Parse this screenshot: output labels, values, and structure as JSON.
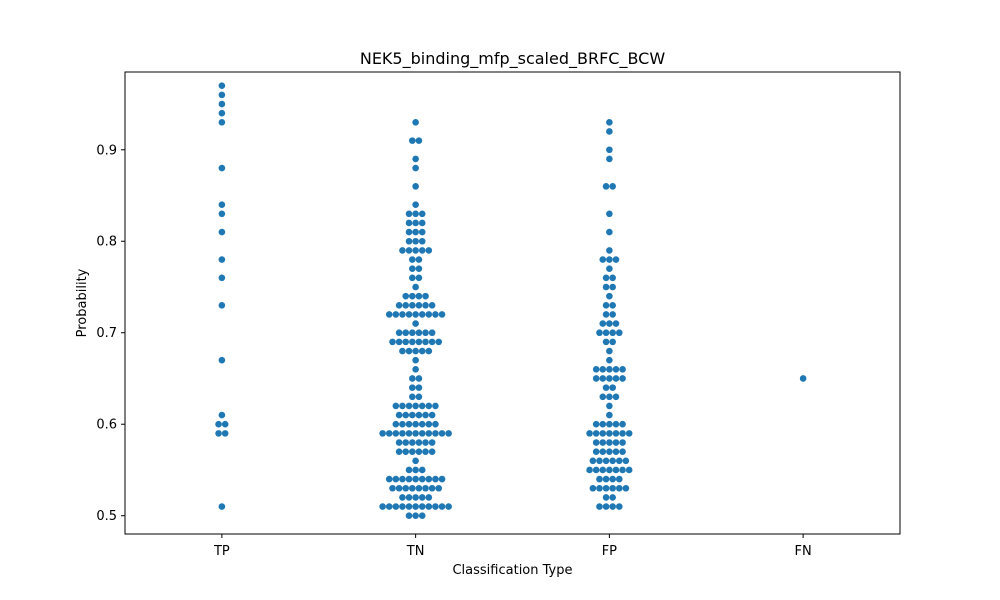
{
  "chart_data": {
    "type": "scatter",
    "subtype": "swarm",
    "title": "NEK5_binding_mfp_scaled_BRFC_BCW",
    "xlabel": "Classification Type",
    "ylabel": "Probability",
    "categories": [
      "TP",
      "TN",
      "FP",
      "FN"
    ],
    "yticks": [
      0.5,
      0.6,
      0.7,
      0.8,
      0.9
    ],
    "ytick_labels": [
      "0.5",
      "0.6",
      "0.7",
      "0.8",
      "0.9"
    ],
    "ylim": [
      0.48,
      0.985
    ],
    "grid": false,
    "legend": "none",
    "color": "#1f77b4",
    "series": [
      {
        "category": "TP",
        "values": [
          0.97,
          0.96,
          0.95,
          0.94,
          0.93,
          0.88,
          0.84,
          0.83,
          0.81,
          0.78,
          0.76,
          0.73,
          0.67,
          0.61,
          0.6,
          0.6,
          0.59,
          0.59,
          0.51
        ]
      },
      {
        "category": "TN",
        "values": [
          0.93,
          0.91,
          0.91,
          0.89,
          0.88,
          0.86,
          0.84,
          0.83,
          0.83,
          0.83,
          0.82,
          0.82,
          0.82,
          0.81,
          0.81,
          0.81,
          0.8,
          0.8,
          0.8,
          0.79,
          0.79,
          0.79,
          0.79,
          0.79,
          0.78,
          0.78,
          0.77,
          0.77,
          0.76,
          0.76,
          0.75,
          0.74,
          0.74,
          0.74,
          0.74,
          0.73,
          0.73,
          0.73,
          0.73,
          0.73,
          0.73,
          0.72,
          0.72,
          0.72,
          0.72,
          0.72,
          0.72,
          0.72,
          0.72,
          0.72,
          0.71,
          0.7,
          0.7,
          0.7,
          0.7,
          0.7,
          0.7,
          0.69,
          0.69,
          0.69,
          0.69,
          0.69,
          0.69,
          0.69,
          0.69,
          0.68,
          0.68,
          0.68,
          0.68,
          0.68,
          0.67,
          0.66,
          0.65,
          0.65,
          0.64,
          0.64,
          0.63,
          0.63,
          0.62,
          0.62,
          0.62,
          0.62,
          0.62,
          0.62,
          0.62,
          0.61,
          0.61,
          0.61,
          0.61,
          0.61,
          0.61,
          0.6,
          0.6,
          0.6,
          0.6,
          0.6,
          0.6,
          0.6,
          0.59,
          0.59,
          0.59,
          0.59,
          0.59,
          0.59,
          0.59,
          0.59,
          0.59,
          0.59,
          0.59,
          0.58,
          0.58,
          0.58,
          0.58,
          0.58,
          0.58,
          0.57,
          0.57,
          0.57,
          0.57,
          0.57,
          0.57,
          0.56,
          0.55,
          0.55,
          0.55,
          0.54,
          0.54,
          0.54,
          0.54,
          0.54,
          0.54,
          0.54,
          0.54,
          0.54,
          0.53,
          0.53,
          0.53,
          0.53,
          0.53,
          0.53,
          0.53,
          0.53,
          0.52,
          0.52,
          0.52,
          0.52,
          0.52,
          0.51,
          0.51,
          0.51,
          0.51,
          0.51,
          0.51,
          0.51,
          0.51,
          0.51,
          0.51,
          0.51,
          0.5,
          0.5,
          0.5
        ]
      },
      {
        "category": "FP",
        "values": [
          0.93,
          0.92,
          0.9,
          0.89,
          0.86,
          0.86,
          0.83,
          0.81,
          0.79,
          0.78,
          0.78,
          0.78,
          0.77,
          0.76,
          0.76,
          0.75,
          0.75,
          0.74,
          0.73,
          0.73,
          0.72,
          0.72,
          0.71,
          0.71,
          0.71,
          0.7,
          0.7,
          0.7,
          0.7,
          0.69,
          0.69,
          0.68,
          0.67,
          0.66,
          0.66,
          0.66,
          0.66,
          0.66,
          0.65,
          0.65,
          0.65,
          0.65,
          0.65,
          0.64,
          0.64,
          0.63,
          0.63,
          0.63,
          0.62,
          0.61,
          0.6,
          0.6,
          0.6,
          0.6,
          0.6,
          0.59,
          0.59,
          0.59,
          0.59,
          0.59,
          0.59,
          0.59,
          0.58,
          0.58,
          0.58,
          0.58,
          0.58,
          0.57,
          0.57,
          0.57,
          0.57,
          0.57,
          0.56,
          0.56,
          0.56,
          0.56,
          0.56,
          0.56,
          0.55,
          0.55,
          0.55,
          0.55,
          0.55,
          0.55,
          0.55,
          0.54,
          0.54,
          0.54,
          0.54,
          0.53,
          0.53,
          0.53,
          0.53,
          0.53,
          0.53,
          0.52,
          0.52,
          0.51,
          0.51,
          0.51,
          0.51
        ]
      },
      {
        "category": "FN",
        "values": [
          0.65
        ]
      }
    ]
  }
}
